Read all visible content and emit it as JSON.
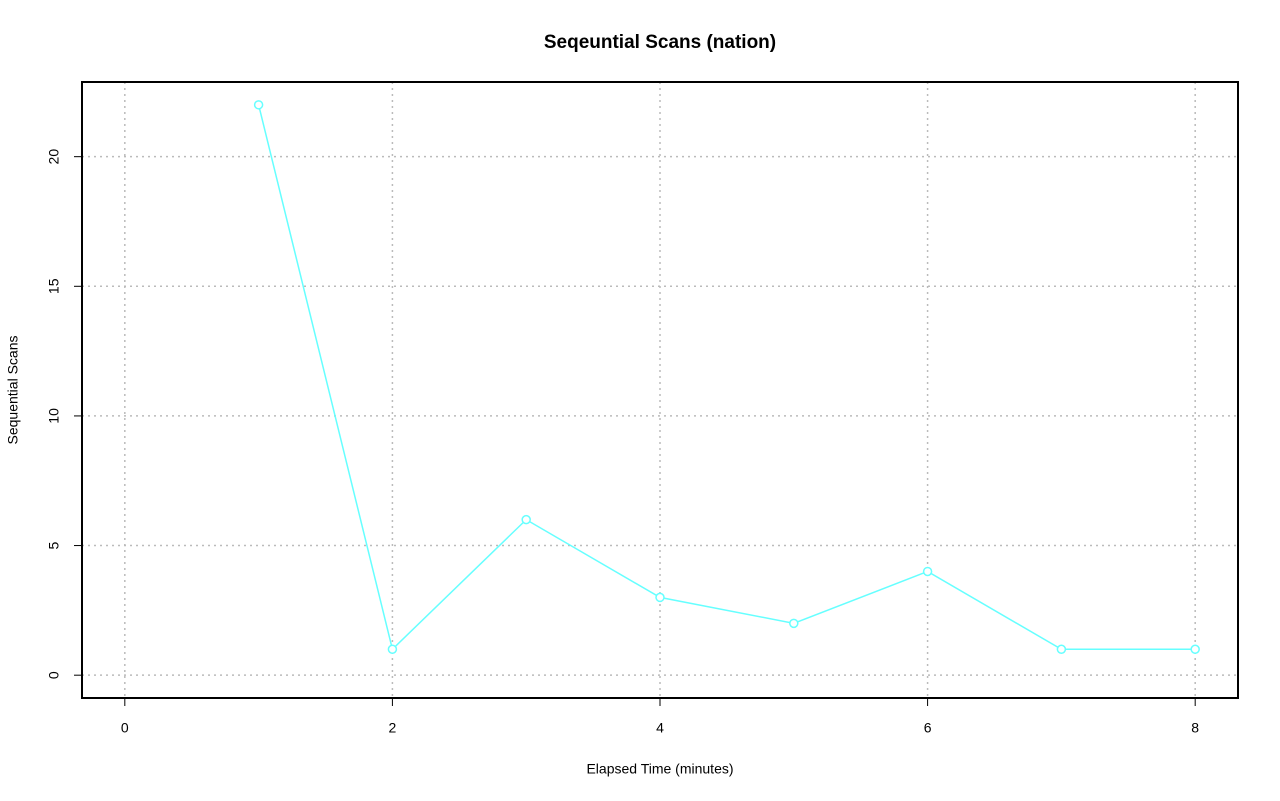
{
  "chart_data": {
    "type": "line",
    "title": "Seqeuntial Scans (nation)",
    "x_label": "Elapsed Time (minutes)",
    "y_label": "Sequential Scans",
    "x": [
      1,
      2,
      3,
      4,
      5,
      6,
      7,
      8
    ],
    "series": [
      {
        "color": "#66ffff",
        "values": [
          22,
          1,
          6,
          3,
          2,
          4,
          1,
          1
        ]
      }
    ],
    "xlim": [
      -0.32,
      8.32
    ],
    "xticks": [
      0,
      2,
      4,
      6,
      8
    ],
    "ylim": [
      -0.88,
      22.88
    ],
    "yticks": [
      0,
      5,
      10,
      15,
      20
    ],
    "grid": true
  }
}
